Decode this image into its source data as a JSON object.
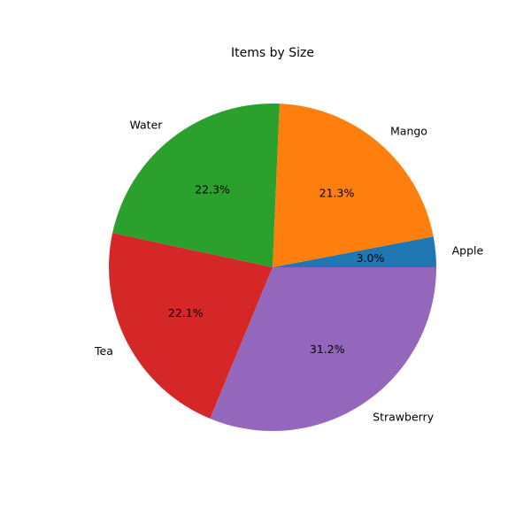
{
  "chart_data": {
    "type": "pie",
    "title": "Items by Size",
    "start_angle_deg": 0,
    "direction": "counterclockwise",
    "slices": [
      {
        "label": "Apple",
        "percent": 3.0,
        "percent_label": "3.0%",
        "color": "#1f77b4"
      },
      {
        "label": "Mango",
        "percent": 21.3,
        "percent_label": "21.3%",
        "color": "#ff7f0e"
      },
      {
        "label": "Water",
        "percent": 22.3,
        "percent_label": "22.3%",
        "color": "#2ca02c"
      },
      {
        "label": "Tea",
        "percent": 22.1,
        "percent_label": "22.1%",
        "color": "#d62728"
      },
      {
        "label": "Strawberry",
        "percent": 31.2,
        "percent_label": "31.2%",
        "color": "#9467bd"
      }
    ]
  }
}
